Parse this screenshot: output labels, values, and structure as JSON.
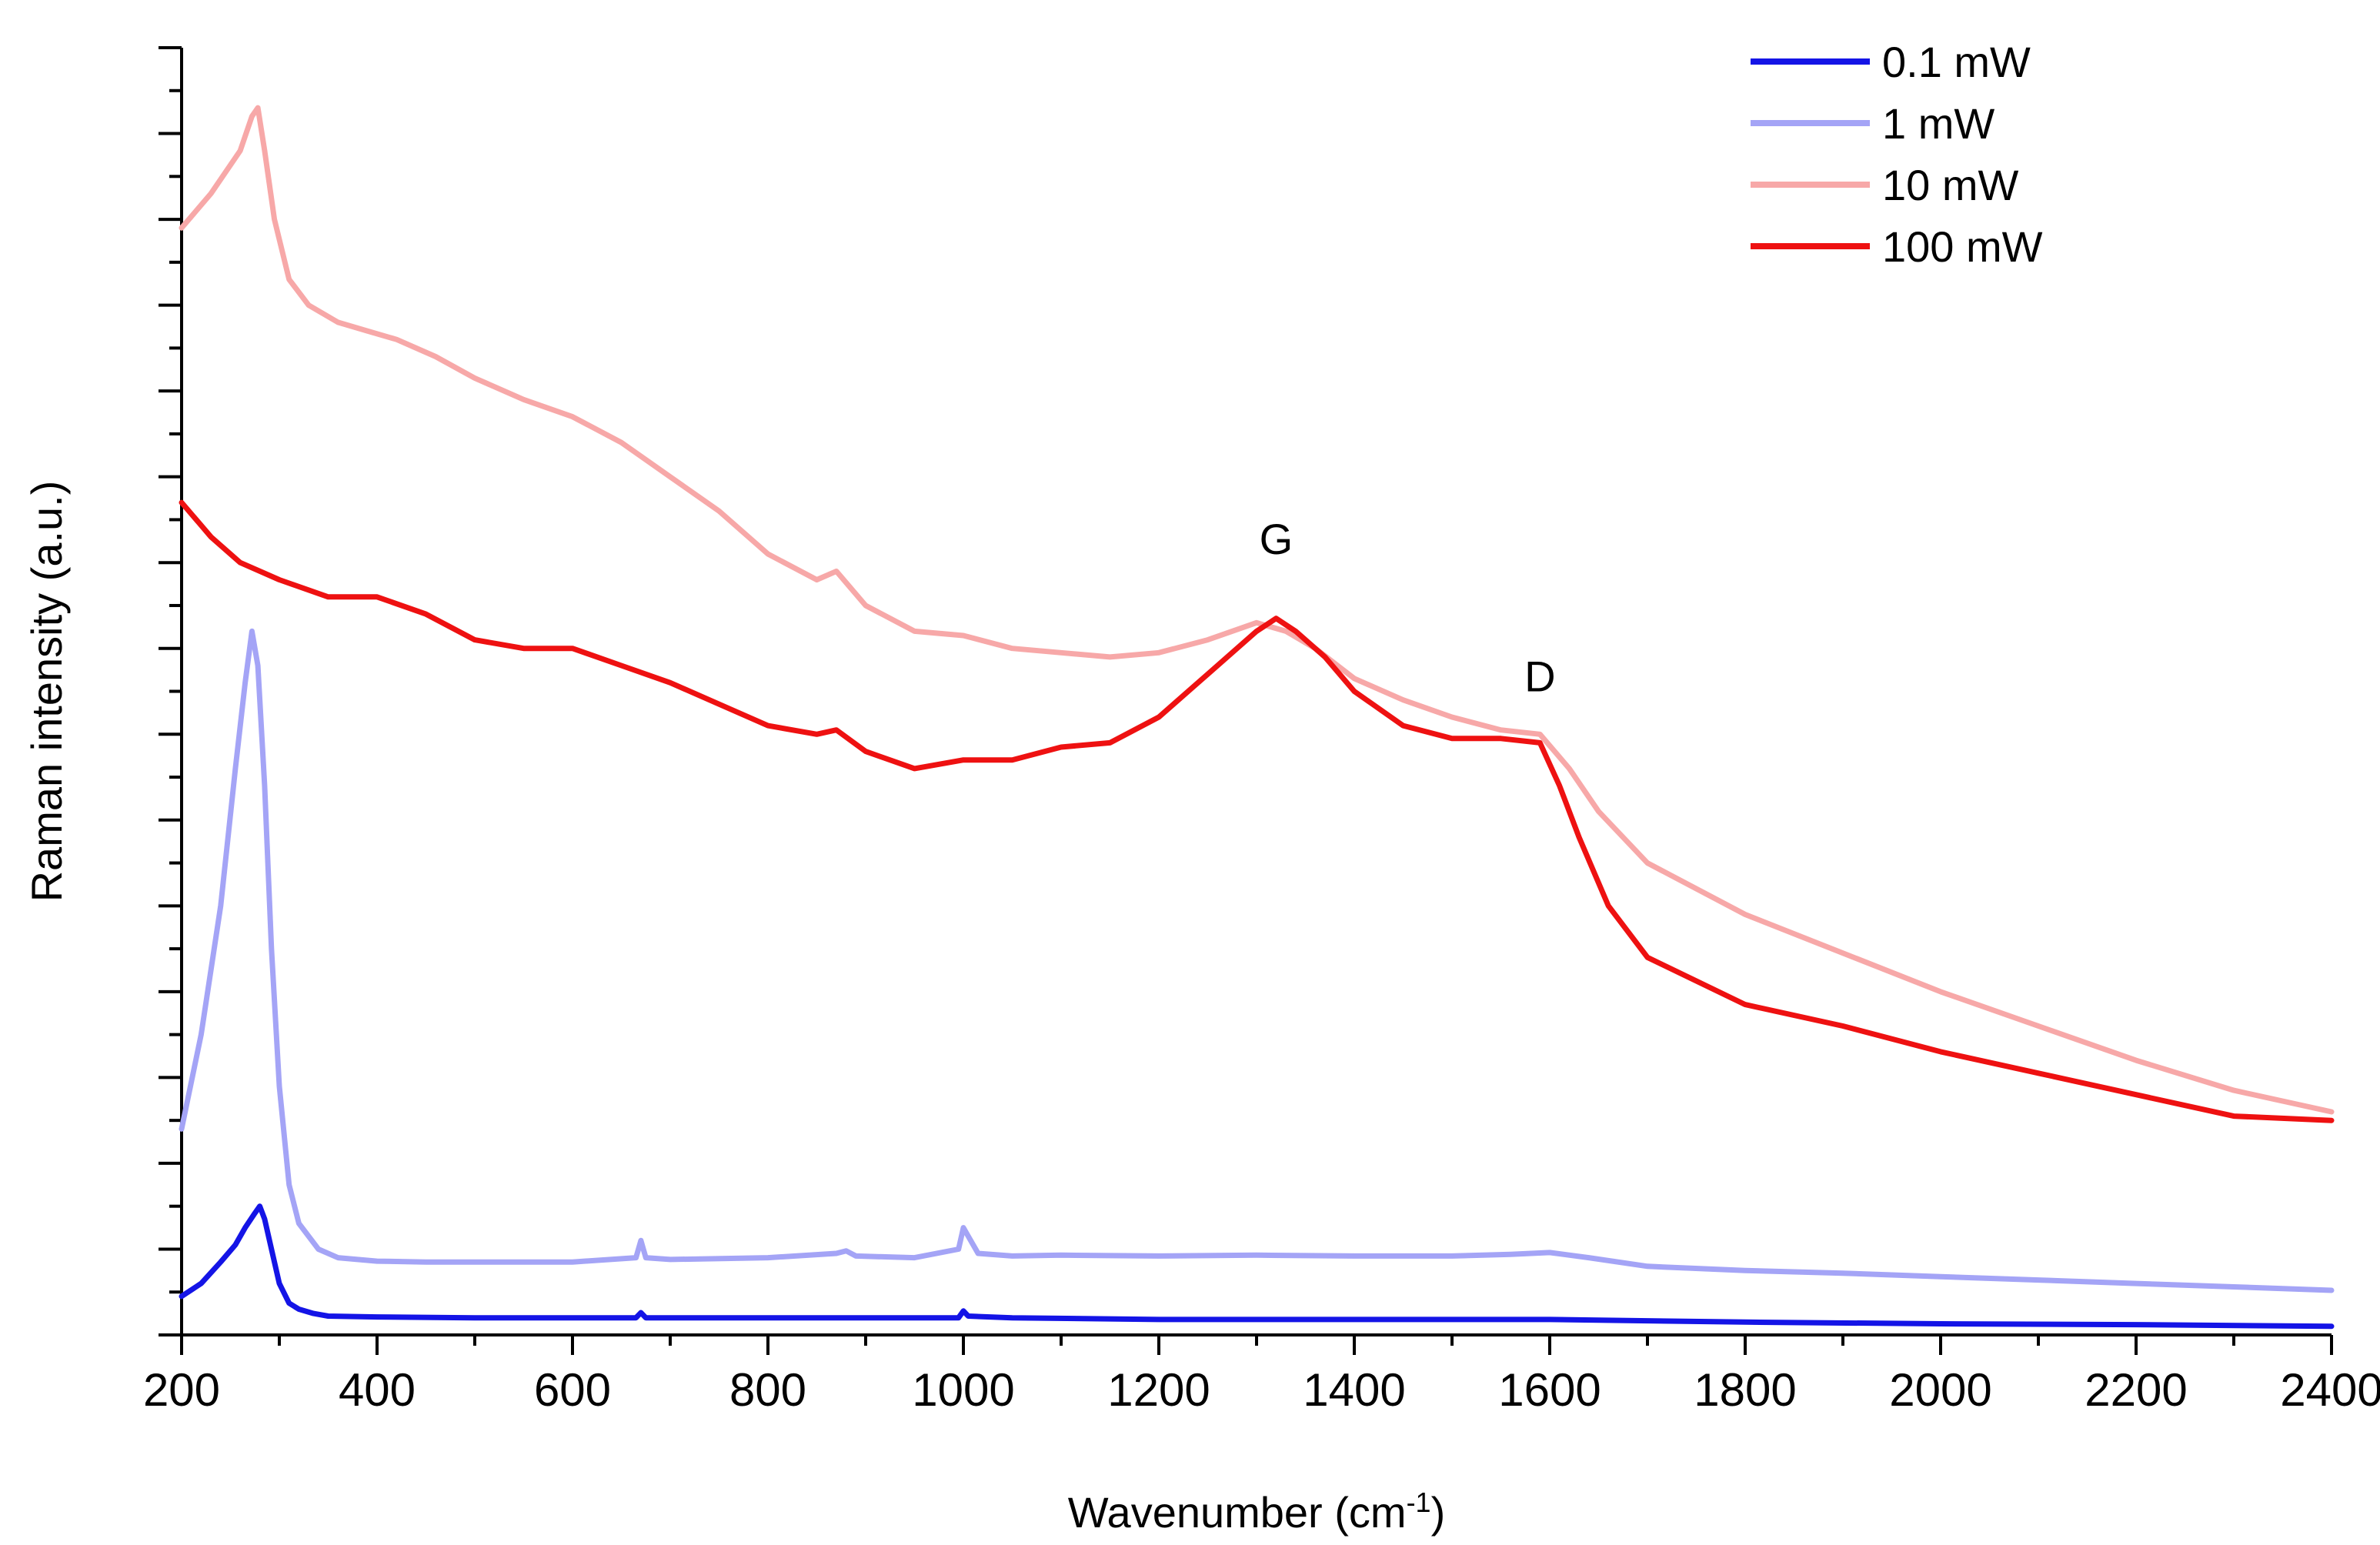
{
  "chart_data": {
    "type": "line",
    "title": "",
    "xlabel": "Wavenumber (cm",
    "xlabel_sup": "-1",
    "xlabel_suffix": ")",
    "ylabel": "Raman intensity (a.u.)",
    "xlim": [
      200,
      2400
    ],
    "ylim": [
      0,
      15
    ],
    "x_ticks": [
      200,
      400,
      600,
      800,
      1000,
      1200,
      1400,
      1600,
      1800,
      2000,
      2200,
      2400
    ],
    "x_tick_labels": [
      "200",
      "400",
      "600",
      "800",
      "1000",
      "1200",
      "1400",
      "1600",
      "1800",
      "2000",
      "2200",
      "2400"
    ],
    "y_ticks_count": 16,
    "y_tick_labels_shown": false,
    "grid": false,
    "legend_position": "top-right",
    "annotations": [
      {
        "text": "G",
        "x": 1320,
        "y": 9.1
      },
      {
        "text": "D",
        "x": 1590,
        "y": 7.5
      }
    ],
    "series": [
      {
        "name": "0.1 mW",
        "color": "#1414e6",
        "x": [
          200,
          220,
          240,
          255,
          265,
          275,
          280,
          285,
          292,
          300,
          310,
          320,
          335,
          350,
          400,
          500,
          600,
          665,
          670,
          675,
          700,
          800,
          900,
          995,
          1000,
          1005,
          1050,
          1200,
          1400,
          1600,
          1800,
          2000,
          2200,
          2400
        ],
        "y": [
          0.45,
          0.6,
          0.85,
          1.05,
          1.25,
          1.42,
          1.5,
          1.35,
          1.0,
          0.6,
          0.37,
          0.3,
          0.25,
          0.22,
          0.21,
          0.2,
          0.2,
          0.2,
          0.26,
          0.2,
          0.2,
          0.2,
          0.2,
          0.2,
          0.28,
          0.22,
          0.2,
          0.18,
          0.18,
          0.18,
          0.15,
          0.13,
          0.12,
          0.1
        ]
      },
      {
        "name": "1 mW",
        "color": "#a4a4f6",
        "x": [
          200,
          220,
          240,
          255,
          265,
          272,
          278,
          285,
          292,
          300,
          310,
          320,
          340,
          360,
          380,
          400,
          450,
          500,
          600,
          665,
          670,
          675,
          700,
          800,
          870,
          880,
          890,
          950,
          995,
          1000,
          1005,
          1015,
          1050,
          1100,
          1200,
          1300,
          1400,
          1500,
          1560,
          1600,
          1640,
          1700,
          1800,
          1900,
          2000,
          2100,
          2200,
          2300,
          2400
        ],
        "y": [
          2.4,
          3.5,
          5.0,
          6.6,
          7.6,
          8.2,
          7.8,
          6.4,
          4.5,
          2.9,
          1.75,
          1.3,
          1.0,
          0.9,
          0.88,
          0.86,
          0.85,
          0.85,
          0.85,
          0.9,
          1.1,
          0.9,
          0.88,
          0.9,
          0.95,
          0.98,
          0.92,
          0.9,
          1.0,
          1.25,
          1.15,
          0.95,
          0.92,
          0.93,
          0.92,
          0.93,
          0.92,
          0.92,
          0.94,
          0.96,
          0.9,
          0.8,
          0.75,
          0.72,
          0.68,
          0.64,
          0.6,
          0.56,
          0.52
        ]
      },
      {
        "name": "10 mW",
        "color": "#f7a8a8",
        "x": [
          200,
          230,
          260,
          272,
          278,
          285,
          295,
          310,
          330,
          360,
          390,
          420,
          460,
          500,
          550,
          600,
          650,
          700,
          750,
          800,
          850,
          870,
          900,
          950,
          1000,
          1050,
          1100,
          1150,
          1200,
          1250,
          1300,
          1330,
          1360,
          1400,
          1450,
          1500,
          1550,
          1590,
          1620,
          1650,
          1700,
          1800,
          1900,
          2000,
          2100,
          2200,
          2300,
          2400
        ],
        "y": [
          12.9,
          13.3,
          13.8,
          14.2,
          14.3,
          13.8,
          13.0,
          12.3,
          12.0,
          11.8,
          11.7,
          11.6,
          11.4,
          11.15,
          10.9,
          10.7,
          10.4,
          10.0,
          9.6,
          9.1,
          8.8,
          8.9,
          8.5,
          8.2,
          8.15,
          8.0,
          7.95,
          7.9,
          7.95,
          8.1,
          8.3,
          8.2,
          8.0,
          7.65,
          7.4,
          7.2,
          7.05,
          7.0,
          6.6,
          6.1,
          5.5,
          4.9,
          4.45,
          4.0,
          3.6,
          3.2,
          2.85,
          2.6
        ]
      },
      {
        "name": "100 mW",
        "color": "#ee1111",
        "x": [
          200,
          230,
          260,
          300,
          350,
          400,
          450,
          500,
          550,
          600,
          650,
          700,
          750,
          800,
          850,
          870,
          900,
          950,
          1000,
          1050,
          1100,
          1150,
          1200,
          1250,
          1300,
          1320,
          1340,
          1370,
          1400,
          1450,
          1500,
          1550,
          1590,
          1610,
          1630,
          1660,
          1700,
          1800,
          1900,
          2000,
          2100,
          2200,
          2300,
          2400
        ],
        "y": [
          9.7,
          9.3,
          9.0,
          8.8,
          8.6,
          8.6,
          8.4,
          8.1,
          8.0,
          8.0,
          7.8,
          7.6,
          7.35,
          7.1,
          7.0,
          7.05,
          6.8,
          6.6,
          6.7,
          6.7,
          6.85,
          6.9,
          7.2,
          7.7,
          8.2,
          8.35,
          8.2,
          7.9,
          7.5,
          7.1,
          6.95,
          6.95,
          6.9,
          6.4,
          5.8,
          5.0,
          4.4,
          3.85,
          3.6,
          3.3,
          3.05,
          2.8,
          2.55,
          2.5
        ]
      }
    ]
  }
}
